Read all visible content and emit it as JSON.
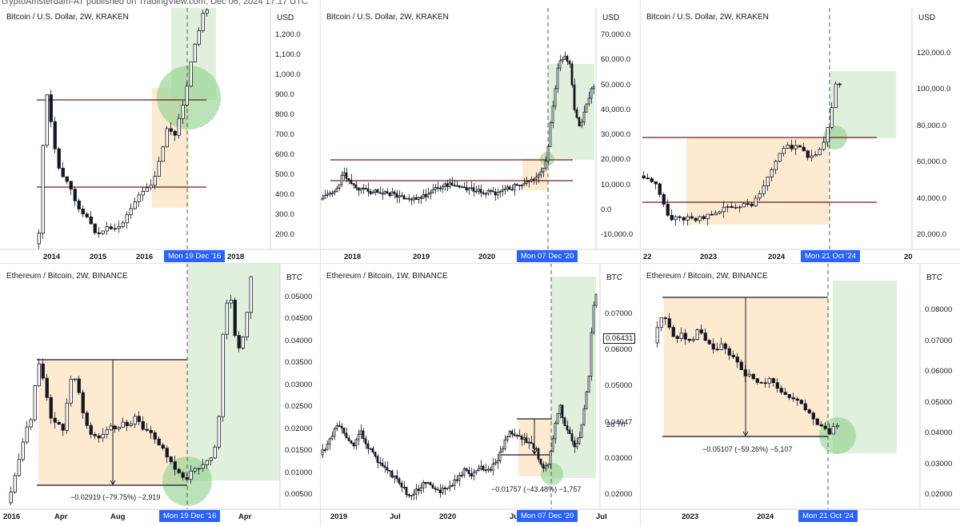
{
  "credit": "cryptoAmsterdam-AT published on TradingView.com, Dec 06, 2024 17:17 UTC",
  "panels": [
    {
      "id": "p1",
      "title": "Bitcoin / U.S. Dollar, 2W, KRAKEN",
      "unit": "USD",
      "yticks": [
        "1,200.0",
        "1,100.0",
        "1,000.0",
        "900.0",
        "800.0",
        "700.0",
        "600.0",
        "500.0",
        "400.0",
        "300.0",
        "200.0"
      ],
      "xticks": [
        "2014",
        "2015",
        "2016",
        "2018"
      ],
      "highlight_label": "Mon 19 Dec '16"
    },
    {
      "id": "p2",
      "title": "Bitcoin / U.S. Dollar, 2W, KRAKEN",
      "unit": "USD",
      "yticks": [
        "70,000.0",
        "60,000.0",
        "50,000.0",
        "40,000.0",
        "30,000.0",
        "20,000.0",
        "10,000.0",
        "0.0",
        "-10,000.0"
      ],
      "xticks": [
        "2018",
        "2019",
        "2020"
      ],
      "highlight_label": "Mon 07 Dec '20"
    },
    {
      "id": "p3",
      "title": "Bitcoin / U.S. Dollar, 2W, KRAKEN",
      "unit": "USD",
      "yticks": [
        "120,000.0",
        "100,000.0",
        "80,000.0",
        "60,000.0",
        "40,000.0",
        "20,000.0"
      ],
      "xticks": [
        "22",
        "2023",
        "2024",
        "20"
      ],
      "highlight_label": "Mon 21 Oct '24"
    },
    {
      "id": "p4",
      "title": "Ethereum / Bitcoin, 2W, BINANCE",
      "unit": "BTC",
      "yticks": [
        "0.05000",
        "0.04500",
        "0.04000",
        "0.03500",
        "0.03000",
        "0.02500",
        "0.02000",
        "0.01500",
        "0.01000",
        "0.00500"
      ],
      "xticks": [
        "2016",
        "Apr",
        "Aug",
        "Apr"
      ],
      "highlight_label": "Mon 19 Dec '16",
      "annotation": "−0.02919 (−79.75%) −2,919"
    },
    {
      "id": "p5",
      "title": "Ethereum / Bitcoin, 1W, BINANCE",
      "unit": "BTC",
      "yticks": [
        "0.07000",
        "0.06000",
        "0.05000",
        "0.04047",
        "0.03000",
        "0.02000"
      ],
      "xticks": [
        "2019",
        "Jul",
        "2020",
        "Jul",
        "Jul"
      ],
      "highlight_label": "Mon 07 Dec '20",
      "annotation": "−0.01757 (−43.48%) −1,757",
      "price_box": "0.06431",
      "countdown": "2d 7h"
    },
    {
      "id": "p6",
      "title": "Ethereum / Bitcoin, 2W, BINANCE",
      "unit": "BTC",
      "yticks": [
        "0.08000",
        "0.07000",
        "0.06000",
        "0.05000",
        "0.04000",
        "0.03000",
        "0.02000"
      ],
      "xticks": [
        "2023",
        "2024"
      ],
      "highlight_label": "Mon 21 Oct '24",
      "annotation": "−0.05107 (−59.26%) −5,107"
    }
  ],
  "chart_data": [
    {
      "type": "candlestick",
      "title": "Bitcoin / U.S. Dollar, 2W, KRAKEN",
      "unit": "USD",
      "x_range": [
        "2013",
        "2018"
      ],
      "y_range": [
        100,
        1300
      ],
      "vertical_marker": "Mon 19 Dec '16",
      "horizontal_levels": [
        920,
        440
      ]
    },
    {
      "type": "candlestick",
      "title": "Bitcoin / U.S. Dollar, 2W, KRAKEN",
      "unit": "USD",
      "x_range": [
        "2017",
        "2021"
      ],
      "y_range": [
        -12000,
        72000
      ],
      "vertical_marker": "Mon 07 Dec '20",
      "horizontal_levels": [
        19500,
        11500
      ]
    },
    {
      "type": "candlestick",
      "title": "Bitcoin / U.S. Dollar, 2W, KRAKEN",
      "unit": "USD",
      "x_range": [
        "2022",
        "2025"
      ],
      "y_range": [
        10000,
        130000
      ],
      "vertical_marker": "Mon 21 Oct '24",
      "horizontal_levels": [
        69000,
        30000
      ]
    },
    {
      "type": "candlestick",
      "title": "Ethereum / Bitcoin, 2W, BINANCE",
      "unit": "BTC",
      "x_range": [
        "2016",
        "2017"
      ],
      "y_range": [
        0.004,
        0.056
      ],
      "vertical_marker": "Mon 19 Dec '16",
      "measure": {
        "change": -0.02919,
        "pct": -79.75,
        "ticks": -2919
      }
    },
    {
      "type": "candlestick",
      "title": "Ethereum / Bitcoin, 1W, BINANCE",
      "unit": "BTC",
      "x_range": [
        "2019",
        "2021"
      ],
      "y_range": [
        0.015,
        0.076
      ],
      "vertical_marker": "Mon 07 Dec '20",
      "measure": {
        "change": -0.01757,
        "pct": -43.48,
        "ticks": -1757
      },
      "last_price": 0.06431
    },
    {
      "type": "candlestick",
      "title": "Ethereum / Bitcoin, 2W, BINANCE",
      "unit": "BTC",
      "x_range": [
        "2022",
        "2025"
      ],
      "y_range": [
        0.011,
        0.09
      ],
      "vertical_marker": "Mon 21 Oct '24",
      "measure": {
        "change": -0.05107,
        "pct": -59.26,
        "ticks": -5107
      }
    }
  ]
}
